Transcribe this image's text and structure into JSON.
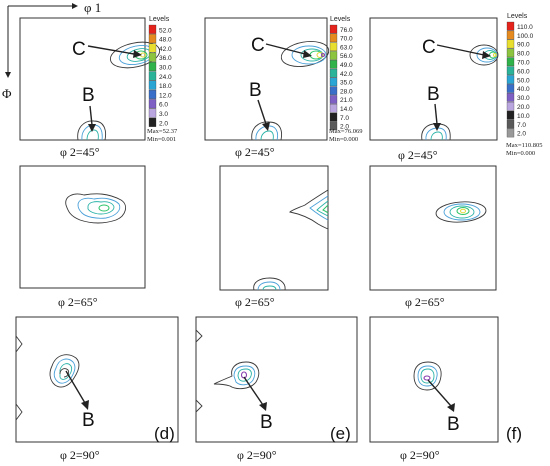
{
  "axes": {
    "phi1": "φ 1",
    "Phi": "Φ"
  },
  "legends": [
    {
      "title": "Levels",
      "levels": [
        "52.0",
        "48.0",
        "42.0",
        "36.0",
        "30.0",
        "24.0",
        "18.0",
        "12.0",
        "6.0",
        "3.0",
        "2.0"
      ],
      "max": "Max=52.37",
      "min": "Min=0.001"
    },
    {
      "title": "Levels",
      "levels": [
        "76.0",
        "70.0",
        "63.0",
        "56.0",
        "49.0",
        "42.0",
        "35.0",
        "28.0",
        "21.0",
        "14.0",
        "7.0",
        "2.0"
      ],
      "max": "Max=76.069",
      "min": "Min=0.000"
    },
    {
      "title": "Levels",
      "levels": [
        "110.0",
        "100.0",
        "90.0",
        "80.0",
        "70.0",
        "60.0",
        "50.0",
        "40.0",
        "30.0",
        "20.0",
        "10.0",
        "7.0",
        "2.0"
      ],
      "max": "Max=110.805",
      "min": "Min=0.000"
    }
  ],
  "level_colors": [
    "#e3231c",
    "#e48a1e",
    "#e7de2f",
    "#8cc43f",
    "#2fb24a",
    "#2bb39a",
    "#2aa5d4",
    "#3a6fc9",
    "#7e5fc4",
    "#b9a6df",
    "#222222",
    "#5a5a5a",
    "#999999"
  ],
  "captions": [
    "φ 2=45°",
    "φ 2=45°",
    "φ 2=45°",
    "φ 2=65°",
    "φ 2=65°",
    "φ 2=65°",
    "φ 2=90°",
    "φ 2=90°",
    "φ 2=90°"
  ],
  "markers": {
    "C": "C",
    "B": "B"
  },
  "panel_tags": [
    "(d)",
    "(e)",
    "(f)"
  ]
}
